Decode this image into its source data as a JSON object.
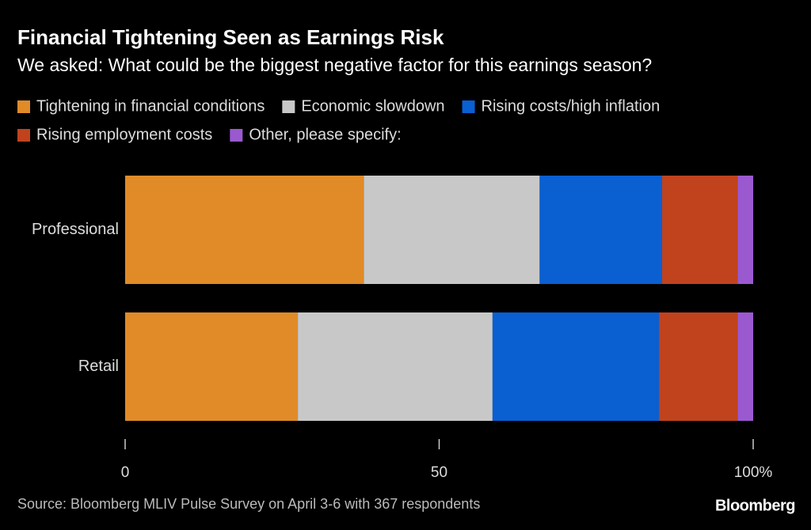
{
  "chart_data": {
    "type": "stacked-bar-horizontal",
    "title": "Financial Tightening Seen as Earnings Risk",
    "subtitle": "We asked: What could be the biggest negative factor for this earnings season?",
    "categories": [
      "Professional",
      "Retail"
    ],
    "series": [
      {
        "name": "Tightening in financial conditions",
        "color": "#e08b28",
        "values": [
          38,
          27.5
        ]
      },
      {
        "name": "Economic slowdown",
        "color": "#c8c8c8",
        "values": [
          28,
          31
        ]
      },
      {
        "name": "Rising costs/high inflation",
        "color": "#0a5fd1",
        "values": [
          19.5,
          26.5
        ]
      },
      {
        "name": "Rising employment costs",
        "color": "#c0431e",
        "values": [
          12,
          12.5
        ]
      },
      {
        "name": "Other, please specify:",
        "color": "#9b59d0",
        "values": [
          2.5,
          2.5
        ]
      }
    ],
    "xlim": [
      0,
      100
    ],
    "xticks": [
      0,
      50,
      {
        "value": 100,
        "label": "100%"
      }
    ],
    "source": "Source: Bloomberg MLIV Pulse Survey on April 3-6 with 367 respondents",
    "brand": "Bloomberg"
  }
}
